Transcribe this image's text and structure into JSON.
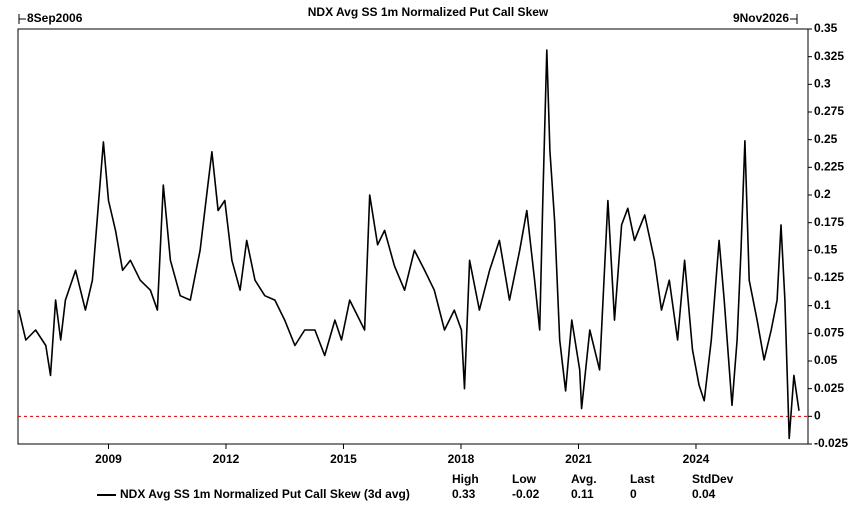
{
  "chart_data": {
    "type": "line",
    "title": "NDX Avg SS 1m Normalized Put Call Skew",
    "start_label": "8Sep2006",
    "end_label": "9Nov2026",
    "x": [
      2006.71,
      2006.89,
      2007.14,
      2007.4,
      2007.52,
      2007.65,
      2007.78,
      2007.9,
      2008.16,
      2008.41,
      2008.59,
      2008.75,
      2008.87,
      2009.0,
      2009.18,
      2009.36,
      2009.56,
      2009.81,
      2010.07,
      2010.25,
      2010.4,
      2010.58,
      2010.83,
      2011.09,
      2011.34,
      2011.52,
      2011.64,
      2011.8,
      2011.97,
      2012.15,
      2012.36,
      2012.53,
      2012.74,
      2012.99,
      2013.25,
      2013.5,
      2013.76,
      2014.01,
      2014.27,
      2014.52,
      2014.78,
      2014.95,
      2015.16,
      2015.54,
      2015.67,
      2015.87,
      2016.05,
      2016.3,
      2016.56,
      2016.81,
      2017.07,
      2017.32,
      2017.58,
      2017.83,
      2018.01,
      2018.09,
      2018.22,
      2018.47,
      2018.73,
      2018.98,
      2019.24,
      2019.5,
      2019.68,
      2019.88,
      2020.01,
      2020.09,
      2020.19,
      2020.27,
      2020.39,
      2020.52,
      2020.67,
      2020.83,
      2021.03,
      2021.08,
      2021.29,
      2021.54,
      2021.75,
      2021.92,
      2022.1,
      2022.26,
      2022.43,
      2022.69,
      2022.94,
      2023.12,
      2023.32,
      2023.53,
      2023.71,
      2023.91,
      2024.08,
      2024.21,
      2024.39,
      2024.59,
      2024.72,
      2024.92,
      2025.05,
      2025.15,
      2025.25,
      2025.36,
      2025.56,
      2025.74,
      2025.92,
      2026.07,
      2026.17,
      2026.27,
      2026.38,
      2026.5,
      2026.63
    ],
    "series": [
      {
        "name": "NDX Avg SS 1m Normalized Put Call Skew (3d avg)",
        "color": "#000000",
        "values": [
          0.096,
          0.069,
          0.078,
          0.064,
          0.037,
          0.105,
          0.069,
          0.105,
          0.132,
          0.096,
          0.123,
          0.195,
          0.248,
          0.195,
          0.168,
          0.132,
          0.141,
          0.123,
          0.114,
          0.096,
          0.209,
          0.141,
          0.109,
          0.105,
          0.15,
          0.204,
          0.239,
          0.186,
          0.195,
          0.141,
          0.114,
          0.159,
          0.123,
          0.109,
          0.105,
          0.087,
          0.064,
          0.078,
          0.078,
          0.055,
          0.087,
          0.069,
          0.105,
          0.078,
          0.2,
          0.155,
          0.168,
          0.136,
          0.114,
          0.15,
          0.132,
          0.114,
          0.078,
          0.096,
          0.078,
          0.025,
          0.141,
          0.096,
          0.132,
          0.159,
          0.105,
          0.15,
          0.186,
          0.123,
          0.078,
          0.195,
          0.331,
          0.24,
          0.177,
          0.069,
          0.023,
          0.087,
          0.042,
          0.007,
          0.078,
          0.042,
          0.195,
          0.087,
          0.173,
          0.188,
          0.159,
          0.182,
          0.141,
          0.096,
          0.123,
          0.069,
          0.141,
          0.06,
          0.028,
          0.014,
          0.069,
          0.159,
          0.105,
          0.01,
          0.069,
          0.15,
          0.249,
          0.123,
          0.087,
          0.051,
          0.078,
          0.105,
          0.173,
          0.105,
          -0.02,
          0.037,
          0.005
        ]
      }
    ],
    "xlim": [
      2006.69,
      2026.86
    ],
    "ylim": [
      -0.025,
      0.35
    ],
    "xticks": [
      2009,
      2012,
      2015,
      2018,
      2021,
      2024
    ],
    "yticks": [
      -0.025,
      0,
      0.025,
      0.05,
      0.075,
      0.1,
      0.125,
      0.15,
      0.175,
      0.2,
      0.225,
      0.25,
      0.275,
      0.3,
      0.325,
      0.35
    ],
    "hline": {
      "value": 0,
      "color": "#cc0000"
    },
    "stats": {
      "labels": [
        "High",
        "Low",
        "Avg.",
        "Last",
        "StdDev"
      ],
      "values": [
        0.33,
        -0.02,
        0.11,
        0,
        0.04
      ]
    }
  }
}
